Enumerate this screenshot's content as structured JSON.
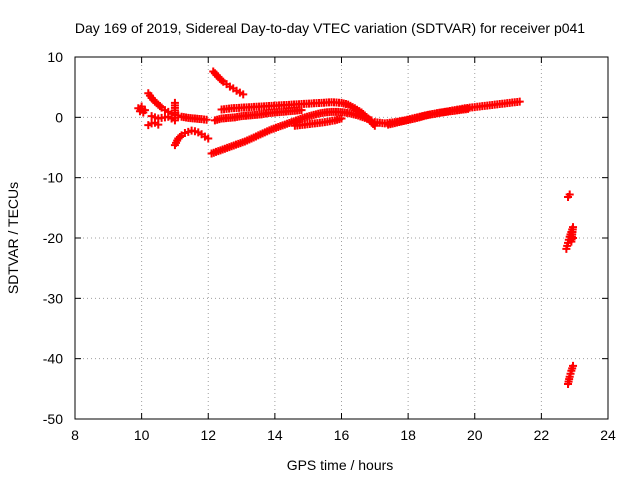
{
  "chart_data": {
    "type": "scatter",
    "title": "Day 169 of 2019, Sidereal Day-to-day VTEC variation (SDTVAR) for receiver p041",
    "xlabel": "GPS time / hours",
    "ylabel": "SDTVAR / TECUs",
    "xlim": [
      8,
      24
    ],
    "ylim": [
      -50,
      10
    ],
    "xticks": [
      8,
      10,
      12,
      14,
      16,
      18,
      20,
      22,
      24
    ],
    "yticks": [
      -50,
      -40,
      -30,
      -20,
      -10,
      0,
      10
    ],
    "xtick_labels": [
      "8",
      "10",
      "12",
      "14",
      "16",
      "18",
      "20",
      "22",
      "24"
    ],
    "ytick_labels": [
      "-50",
      "-40",
      "-30",
      "-20",
      "-10",
      "0",
      "10"
    ],
    "grid": true,
    "marker": "+",
    "color": "#ff0000",
    "series": [
      {
        "points": [
          [
            9.9,
            1.5
          ],
          [
            9.95,
            1.0
          ],
          [
            10.0,
            1.8
          ],
          [
            10.05,
            0.8
          ],
          [
            10.1,
            1.2
          ]
        ]
      },
      {
        "points": [
          [
            10.2,
            4.0
          ],
          [
            10.3,
            3.2
          ],
          [
            10.4,
            2.6
          ],
          [
            10.5,
            2.1
          ],
          [
            10.6,
            1.6
          ],
          [
            10.7,
            1.2
          ],
          [
            10.8,
            0.9
          ],
          [
            10.9,
            0.6
          ],
          [
            11.0,
            0.4
          ],
          [
            11.1,
            0.3
          ],
          [
            11.2,
            0.1
          ],
          [
            11.4,
            -0.1
          ],
          [
            11.6,
            -0.2
          ],
          [
            11.8,
            -0.3
          ],
          [
            11.95,
            -0.4
          ]
        ]
      },
      {
        "points": [
          [
            10.3,
            0.2
          ],
          [
            10.4,
            0.0
          ],
          [
            10.5,
            -0.2
          ],
          [
            10.6,
            -0.1
          ],
          [
            10.7,
            0.0
          ],
          [
            10.8,
            0.1
          ],
          [
            10.9,
            -0.2
          ],
          [
            11.0,
            -0.5
          ],
          [
            11.0,
            2.4
          ]
        ]
      },
      {
        "points": [
          [
            10.2,
            -1.3
          ],
          [
            10.3,
            -1.0
          ],
          [
            10.4,
            -0.9
          ],
          [
            10.5,
            -1.2
          ]
        ]
      },
      {
        "points": [
          [
            11.0,
            -4.6
          ],
          [
            11.1,
            -3.5
          ],
          [
            11.2,
            -3.0
          ],
          [
            11.3,
            -2.6
          ],
          [
            11.4,
            -2.4
          ],
          [
            11.5,
            -2.2
          ],
          [
            11.6,
            -2.3
          ],
          [
            11.7,
            -2.5
          ],
          [
            11.8,
            -2.8
          ],
          [
            11.9,
            -3.2
          ],
          [
            12.0,
            -3.5
          ]
        ]
      },
      {
        "points": [
          [
            12.15,
            7.6
          ],
          [
            12.25,
            7.0
          ],
          [
            12.35,
            6.4
          ],
          [
            12.45,
            5.9
          ],
          [
            12.55,
            5.5
          ],
          [
            12.65,
            5.1
          ],
          [
            12.75,
            4.8
          ],
          [
            12.85,
            4.4
          ],
          [
            12.95,
            4.1
          ],
          [
            13.05,
            3.8
          ]
        ]
      },
      {
        "points": [
          [
            12.2,
            -0.5
          ],
          [
            12.4,
            -0.2
          ],
          [
            12.6,
            -0.1
          ],
          [
            12.8,
            0.0
          ],
          [
            13.0,
            0.2
          ],
          [
            13.2,
            0.3
          ],
          [
            13.4,
            0.4
          ],
          [
            13.6,
            0.5
          ],
          [
            13.8,
            0.7
          ],
          [
            14.0,
            0.8
          ],
          [
            14.2,
            0.9
          ],
          [
            14.4,
            1.0
          ],
          [
            14.6,
            1.1
          ],
          [
            14.8,
            1.2
          ]
        ]
      },
      {
        "points": [
          [
            12.4,
            1.3
          ],
          [
            12.7,
            1.5
          ],
          [
            13.0,
            1.6
          ],
          [
            13.3,
            1.7
          ],
          [
            13.6,
            1.8
          ],
          [
            13.9,
            1.9
          ],
          [
            14.2,
            2.0
          ],
          [
            14.5,
            2.1
          ],
          [
            14.8,
            2.2
          ],
          [
            15.1,
            2.3
          ],
          [
            15.4,
            2.4
          ],
          [
            15.7,
            2.5
          ],
          [
            16.0,
            2.4
          ],
          [
            16.2,
            2.1
          ],
          [
            16.4,
            1.5
          ],
          [
            16.6,
            0.8
          ],
          [
            16.8,
            -0.2
          ],
          [
            17.0,
            -1.4
          ]
        ]
      },
      {
        "points": [
          [
            12.1,
            -6.0
          ],
          [
            12.3,
            -5.6
          ],
          [
            12.5,
            -5.2
          ],
          [
            12.7,
            -4.8
          ],
          [
            12.9,
            -4.4
          ],
          [
            13.1,
            -4.0
          ],
          [
            13.3,
            -3.5
          ],
          [
            13.5,
            -3.0
          ],
          [
            13.7,
            -2.5
          ],
          [
            13.9,
            -2.0
          ],
          [
            14.1,
            -1.6
          ],
          [
            14.3,
            -1.2
          ],
          [
            14.5,
            -0.8
          ],
          [
            14.7,
            -0.4
          ],
          [
            14.9,
            0.0
          ],
          [
            15.1,
            0.3
          ],
          [
            15.3,
            0.6
          ],
          [
            15.5,
            0.8
          ],
          [
            15.7,
            0.9
          ],
          [
            15.9,
            0.9
          ],
          [
            16.1,
            0.8
          ],
          [
            16.3,
            0.6
          ],
          [
            16.5,
            0.3
          ],
          [
            16.7,
            -0.1
          ],
          [
            16.9,
            -0.5
          ]
        ]
      },
      {
        "points": [
          [
            14.6,
            -1.4
          ],
          [
            14.9,
            -1.2
          ],
          [
            15.2,
            -1.0
          ],
          [
            15.5,
            -0.8
          ],
          [
            15.8,
            -0.5
          ],
          [
            16.0,
            -0.2
          ]
        ]
      },
      {
        "points": [
          [
            17.0,
            -0.8
          ],
          [
            17.3,
            -1.0
          ],
          [
            17.6,
            -0.8
          ],
          [
            17.9,
            -0.5
          ],
          [
            18.2,
            -0.1
          ],
          [
            18.5,
            0.3
          ],
          [
            18.8,
            0.6
          ],
          [
            19.1,
            0.9
          ],
          [
            19.4,
            1.2
          ],
          [
            19.7,
            1.5
          ],
          [
            20.0,
            1.7
          ],
          [
            20.3,
            1.9
          ],
          [
            20.6,
            2.1
          ],
          [
            20.9,
            2.3
          ],
          [
            21.2,
            2.5
          ],
          [
            21.35,
            2.6
          ]
        ]
      },
      {
        "points": [
          [
            17.4,
            -1.2
          ],
          [
            17.8,
            -0.7
          ],
          [
            18.2,
            -0.2
          ],
          [
            18.6,
            0.4
          ],
          [
            19.0,
            0.8
          ],
          [
            19.4,
            1.1
          ],
          [
            19.8,
            1.4
          ]
        ]
      },
      {
        "points": [
          [
            22.8,
            -13.2
          ],
          [
            22.85,
            -12.8
          ]
        ]
      },
      {
        "points": [
          [
            22.75,
            -21.8
          ],
          [
            22.8,
            -20.8
          ],
          [
            22.85,
            -19.8
          ],
          [
            22.9,
            -19.0
          ],
          [
            22.95,
            -18.2
          ],
          [
            22.9,
            -20.6
          ],
          [
            22.95,
            -20.0
          ]
        ]
      },
      {
        "points": [
          [
            22.8,
            -44.2
          ],
          [
            22.85,
            -43.0
          ],
          [
            22.9,
            -42.0
          ],
          [
            22.95,
            -41.2
          ]
        ]
      }
    ]
  }
}
